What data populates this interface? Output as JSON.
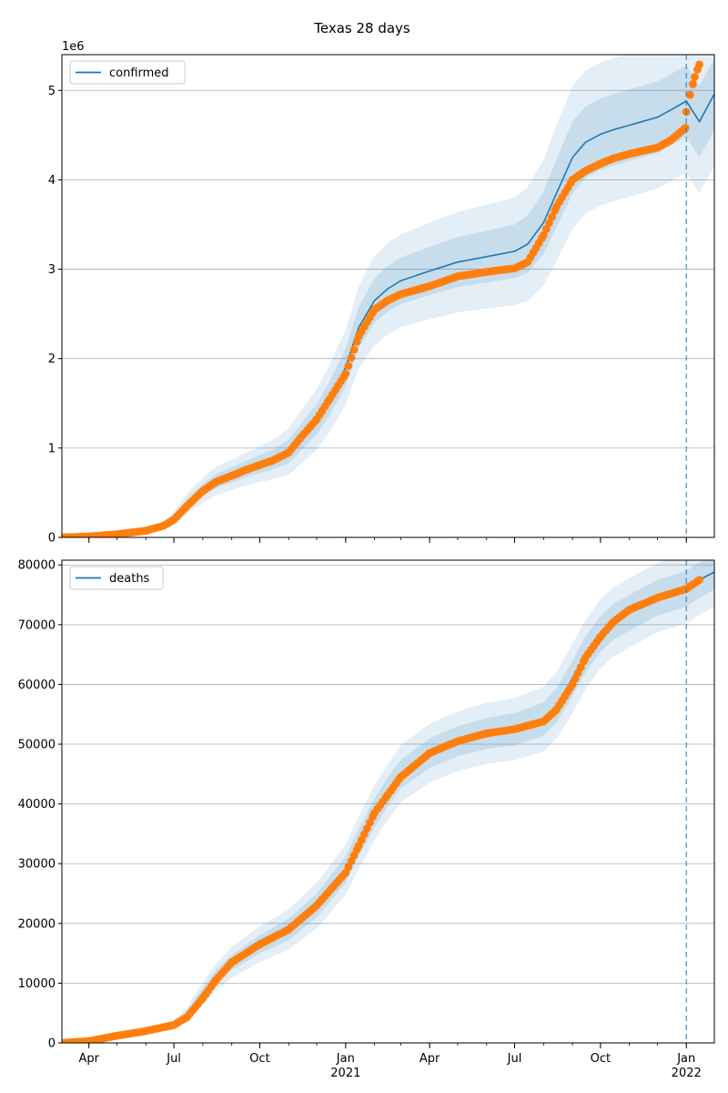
{
  "title": "Texas 28 days",
  "colors": {
    "model_line": "#1f77b4",
    "band": "#1f77b4",
    "observed": "#ff7f0e",
    "grid": "#b0b0b0",
    "vline": "#1f77b4"
  },
  "x_axis": {
    "start": "2020-03-03",
    "end": "2022-01-31",
    "ticks": [
      {
        "date": "2020-04-01",
        "label": "Apr",
        "sublabel": ""
      },
      {
        "date": "2020-07-01",
        "label": "Jul",
        "sublabel": ""
      },
      {
        "date": "2020-10-01",
        "label": "Oct",
        "sublabel": ""
      },
      {
        "date": "2021-01-01",
        "label": "Jan",
        "sublabel": "2021"
      },
      {
        "date": "2021-04-01",
        "label": "Apr",
        "sublabel": ""
      },
      {
        "date": "2021-07-01",
        "label": "Jul",
        "sublabel": ""
      },
      {
        "date": "2021-10-01",
        "label": "Oct",
        "sublabel": ""
      },
      {
        "date": "2022-01-01",
        "label": "Jan",
        "sublabel": "2022"
      }
    ],
    "forecast_start": "2022-01-01"
  },
  "chart_data": [
    {
      "type": "line",
      "series_name": "confirmed",
      "legend": "upper-left",
      "grid": "horizontal",
      "ylim": [
        0,
        5400000
      ],
      "y_ticks": [
        0,
        1000000,
        2000000,
        3000000,
        4000000,
        5000000
      ],
      "y_tick_labels": [
        "0",
        "1",
        "2",
        "3",
        "4",
        "5"
      ],
      "y_offset_label": "1e6",
      "model": {
        "dates": [
          "2020-03-03",
          "2020-04-01",
          "2020-05-01",
          "2020-06-01",
          "2020-06-20",
          "2020-07-01",
          "2020-07-15",
          "2020-08-01",
          "2020-08-15",
          "2020-09-01",
          "2020-09-15",
          "2020-10-01",
          "2020-10-15",
          "2020-11-01",
          "2020-11-15",
          "2020-12-01",
          "2020-12-15",
          "2021-01-01",
          "2021-01-15",
          "2021-02-01",
          "2021-02-15",
          "2021-03-01",
          "2021-04-01",
          "2021-05-01",
          "2021-06-01",
          "2021-07-01",
          "2021-07-15",
          "2021-08-01",
          "2021-08-15",
          "2021-09-01",
          "2021-09-15",
          "2021-10-01",
          "2021-10-15",
          "2021-11-01",
          "2021-12-01",
          "2021-12-15",
          "2022-01-01",
          "2022-01-15",
          "2022-01-31"
        ],
        "values": [
          0,
          10000,
          35000,
          75000,
          130000,
          210000,
          380000,
          530000,
          630000,
          700000,
          760000,
          820000,
          870000,
          960000,
          1130000,
          1320000,
          1560000,
          1900000,
          2350000,
          2650000,
          2780000,
          2870000,
          2980000,
          3080000,
          3140000,
          3200000,
          3280000,
          3520000,
          3850000,
          4250000,
          4420000,
          4510000,
          4560000,
          4610000,
          4700000,
          4780000,
          4880000,
          4650000,
          4960000
        ],
        "band1": [
          0,
          2000,
          6000,
          12000,
          20000,
          40000,
          55000,
          70000,
          80000,
          85000,
          90000,
          100000,
          110000,
          130000,
          150000,
          170000,
          190000,
          210000,
          230000,
          250000,
          255000,
          260000,
          270000,
          280000,
          290000,
          300000,
          320000,
          350000,
          380000,
          400000,
          400000,
          400000,
          400000,
          400000,
          400000,
          400000,
          400000,
          400000,
          400000
        ],
        "band2": [
          0,
          4000,
          12000,
          25000,
          40000,
          80000,
          110000,
          140000,
          160000,
          170000,
          180000,
          200000,
          220000,
          260000,
          300000,
          340000,
          380000,
          420000,
          460000,
          500000,
          510000,
          520000,
          540000,
          560000,
          580000,
          600000,
          640000,
          700000,
          760000,
          800000,
          800000,
          800000,
          800000,
          800000,
          800000,
          800000,
          800000,
          800000,
          800000
        ]
      },
      "observed": {
        "dates": [
          "2020-03-03",
          "2020-04-01",
          "2020-05-01",
          "2020-06-01",
          "2020-06-20",
          "2020-07-01",
          "2020-07-15",
          "2020-08-01",
          "2020-08-15",
          "2020-09-01",
          "2020-09-15",
          "2020-10-01",
          "2020-10-15",
          "2020-11-01",
          "2020-11-15",
          "2020-12-01",
          "2020-12-15",
          "2021-01-01",
          "2021-01-15",
          "2021-02-01",
          "2021-02-15",
          "2021-03-01",
          "2021-04-01",
          "2021-05-01",
          "2021-06-01",
          "2021-07-01",
          "2021-07-15",
          "2021-08-01",
          "2021-08-15",
          "2021-09-01",
          "2021-09-15",
          "2021-10-01",
          "2021-10-15",
          "2021-11-01",
          "2021-12-01",
          "2021-12-15",
          "2021-12-31",
          "2022-01-01",
          "2022-01-05",
          "2022-01-10",
          "2022-01-15"
        ],
        "values": [
          0,
          10000,
          35000,
          75000,
          130000,
          200000,
          350000,
          520000,
          620000,
          690000,
          750000,
          810000,
          860000,
          950000,
          1130000,
          1320000,
          1550000,
          1830000,
          2250000,
          2550000,
          2650000,
          2720000,
          2810000,
          2920000,
          2970000,
          3010000,
          3080000,
          3380000,
          3700000,
          4000000,
          4100000,
          4180000,
          4240000,
          4290000,
          4360000,
          4440000,
          4580000,
          4760000,
          4950000,
          5150000,
          5290000
        ]
      }
    },
    {
      "type": "line",
      "series_name": "deaths",
      "legend": "upper-left",
      "grid": "horizontal",
      "ylim": [
        0,
        80800
      ],
      "y_ticks": [
        0,
        10000,
        20000,
        30000,
        40000,
        50000,
        60000,
        70000,
        80000
      ],
      "y_tick_labels": [
        "0",
        "10000",
        "20000",
        "30000",
        "40000",
        "50000",
        "60000",
        "70000",
        "80000"
      ],
      "y_offset_label": "",
      "model": {
        "dates": [
          "2020-03-03",
          "2020-04-01",
          "2020-05-01",
          "2020-06-01",
          "2020-07-01",
          "2020-07-15",
          "2020-08-01",
          "2020-08-15",
          "2020-09-01",
          "2020-10-01",
          "2020-11-01",
          "2020-12-01",
          "2021-01-01",
          "2021-01-15",
          "2021-02-01",
          "2021-02-15",
          "2021-03-01",
          "2021-04-01",
          "2021-05-01",
          "2021-06-01",
          "2021-07-01",
          "2021-08-01",
          "2021-08-15",
          "2021-09-01",
          "2021-09-15",
          "2021-10-01",
          "2021-10-15",
          "2021-11-01",
          "2021-12-01",
          "2022-01-01",
          "2022-01-15",
          "2022-01-31"
        ],
        "values": [
          0,
          300,
          1200,
          2000,
          3000,
          4800,
          8300,
          11000,
          13500,
          16500,
          19000,
          23000,
          29000,
          33500,
          38500,
          42000,
          45000,
          48500,
          50500,
          51800,
          52500,
          54200,
          56500,
          61000,
          65000,
          68500,
          70500,
          72000,
          74500,
          76000,
          77500,
          78800
        ],
        "band1": [
          0,
          60,
          150,
          250,
          400,
          600,
          900,
          1100,
          1300,
          1500,
          1800,
          2000,
          2200,
          2300,
          2400,
          2400,
          2400,
          2500,
          2500,
          2600,
          2700,
          2800,
          2900,
          3000,
          3000,
          3000,
          3000,
          3000,
          3000,
          3000,
          3000,
          3000
        ],
        "band2": [
          0,
          120,
          300,
          500,
          800,
          1200,
          1800,
          2200,
          2600,
          3000,
          3400,
          3800,
          4200,
          4400,
          4600,
          4700,
          4800,
          4900,
          5000,
          5100,
          5200,
          5400,
          5600,
          5800,
          5800,
          5800,
          5800,
          5800,
          5800,
          5800,
          5800,
          5800
        ]
      },
      "observed": {
        "dates": [
          "2020-03-03",
          "2020-04-01",
          "2020-05-01",
          "2020-06-01",
          "2020-07-01",
          "2020-07-15",
          "2020-08-01",
          "2020-08-15",
          "2020-09-01",
          "2020-10-01",
          "2020-11-01",
          "2020-12-01",
          "2021-01-01",
          "2021-01-15",
          "2021-02-01",
          "2021-02-15",
          "2021-03-01",
          "2021-04-01",
          "2021-05-01",
          "2021-06-01",
          "2021-07-01",
          "2021-08-01",
          "2021-08-15",
          "2021-09-01",
          "2021-09-15",
          "2021-10-01",
          "2021-10-15",
          "2021-11-01",
          "2021-12-01",
          "2022-01-01",
          "2022-01-15"
        ],
        "values": [
          0,
          300,
          1200,
          2000,
          3000,
          4300,
          7500,
          10500,
          13500,
          16500,
          19000,
          23000,
          28500,
          33000,
          38500,
          41500,
          44500,
          48500,
          50500,
          51800,
          52500,
          53800,
          55800,
          60000,
          64500,
          68000,
          70500,
          72500,
          74500,
          76000,
          77500
        ]
      }
    }
  ]
}
